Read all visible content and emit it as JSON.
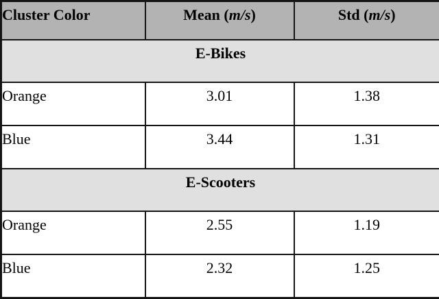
{
  "colors": {
    "header_background": "#b3b3b3",
    "section_background": "#e0e0e0",
    "row_background": "#ffffff",
    "border": "#141414",
    "text": "#000000"
  },
  "header": {
    "cluster_color": "Cluster Color",
    "mean_prefix": "Mean (",
    "std_prefix": "Std (",
    "unit": "m/s",
    "paren_close": ")"
  },
  "sections": [
    {
      "title": "E-Bikes",
      "rows": [
        {
          "cluster": "Orange",
          "mean": "3.01",
          "std": "1.38"
        },
        {
          "cluster": "Blue",
          "mean": "3.44",
          "std": "1.31"
        }
      ]
    },
    {
      "title": "E-Scooters",
      "rows": [
        {
          "cluster": "Orange",
          "mean": "2.55",
          "std": "1.19"
        },
        {
          "cluster": "Blue",
          "mean": "2.32",
          "std": "1.25"
        }
      ]
    }
  ]
}
